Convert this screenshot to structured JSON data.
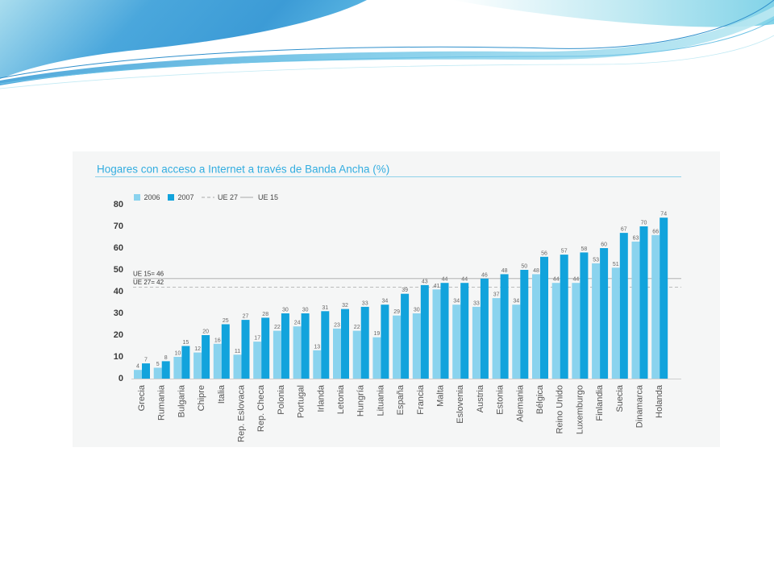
{
  "slide": {
    "background": "#ffffff"
  },
  "chart_panel": {
    "background": "#f5f6f6"
  },
  "chart_data": {
    "type": "bar",
    "title": "Hogares con acceso a Internet a través de Banda Ancha (%)",
    "categories": [
      "Grecia",
      "Rumania",
      "Bulgaria",
      "Chipre",
      "Italia",
      "Rep. Eslovaca",
      "Rep. Checa",
      "Polonia",
      "Portugal",
      "Irlanda",
      "Letonia",
      "Hungría",
      "Lituania",
      "España",
      "Francia",
      "Malta",
      "Eslovenia",
      "Austria",
      "Estonia",
      "Alemania",
      "Bélgica",
      "Reino Unido",
      "Luxemburgo",
      "Finlandia",
      "Suecia",
      "Dinamarca",
      "Holanda"
    ],
    "series": [
      {
        "name": "2006",
        "color": "#8ad3ee",
        "values": [
          4,
          5,
          10,
          12,
          16,
          11,
          17,
          22,
          24,
          13,
          23,
          22,
          19,
          29,
          30,
          41,
          34,
          33,
          37,
          34,
          48,
          44,
          44,
          53,
          51,
          63,
          66
        ]
      },
      {
        "name": "2007",
        "color": "#12a3dc",
        "values": [
          7,
          8,
          15,
          20,
          25,
          27,
          28,
          30,
          30,
          31,
          32,
          33,
          34,
          39,
          43,
          44,
          44,
          46,
          48,
          50,
          56,
          57,
          58,
          60,
          67,
          70,
          74
        ]
      }
    ],
    "reference_lines": [
      {
        "name": "UE 27",
        "value": 42,
        "label": "UE 27= 42",
        "dashed": true,
        "color": "#a8a8a8"
      },
      {
        "name": "UE 15",
        "value": 46,
        "label": "UE 15= 46",
        "dashed": false,
        "color": "#a8a8a8"
      }
    ],
    "yticks": [
      0,
      10,
      20,
      30,
      40,
      50,
      60,
      70,
      80
    ],
    "ylim": [
      0,
      80
    ],
    "grid": false,
    "legend": "top-left"
  }
}
